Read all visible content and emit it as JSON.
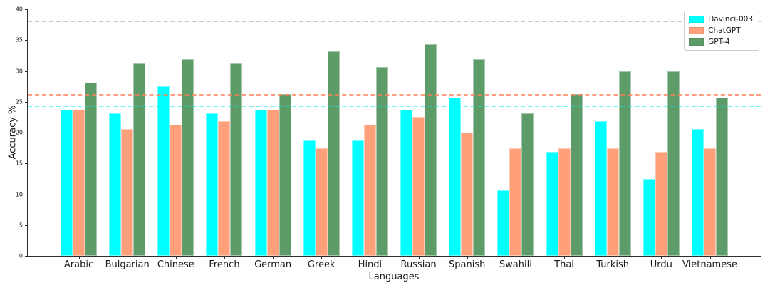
{
  "chart_data": {
    "type": "bar",
    "title": "",
    "xlabel": "Languages",
    "ylabel": "Accuracy %",
    "ylim": [
      0,
      40
    ],
    "yticks": [
      0,
      5,
      10,
      15,
      20,
      25,
      30,
      35,
      40
    ],
    "grid": false,
    "legend_position": "upper right",
    "categories": [
      "Arabic",
      "Bulgarian",
      "Chinese",
      "French",
      "German",
      "Greek",
      "Hindi",
      "Russian",
      "Spanish",
      "Swahili",
      "Thai",
      "Turkish",
      "Urdu",
      "Vietnamese"
    ],
    "series": [
      {
        "name": "Davinci-003",
        "color": "#00ffff",
        "values": [
          23.75,
          23.125,
          27.5,
          23.125,
          23.75,
          18.75,
          18.75,
          23.75,
          25.625,
          10.625,
          16.875,
          21.875,
          12.5,
          20.625
        ]
      },
      {
        "name": "ChatGPT",
        "color": "#ffa07a",
        "values": [
          23.75,
          20.625,
          21.25,
          21.875,
          23.75,
          17.5,
          21.25,
          22.5,
          20.0,
          17.5,
          17.5,
          17.5,
          16.875,
          17.5
        ]
      },
      {
        "name": "GPT-4",
        "color": "#5d9b68",
        "values": [
          28.125,
          31.25,
          31.875,
          31.25,
          26.25,
          33.125,
          30.625,
          34.375,
          31.875,
          23.125,
          26.25,
          30.0,
          30.0,
          25.625
        ]
      }
    ],
    "baselines": [
      {
        "series": "Davinci-003",
        "value": 24.375,
        "color": "rgba(0,235,235,0.55)"
      },
      {
        "series": "ChatGPT",
        "value": 26.25,
        "color": "rgba(255,125,85,0.75)"
      },
      {
        "series": "GPT-4",
        "value": 38.125,
        "color": "rgba(93,155,104,0.45)"
      }
    ]
  }
}
